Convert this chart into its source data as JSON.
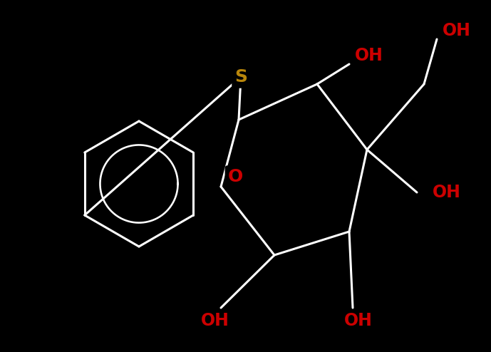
{
  "background_color": "#000000",
  "bond_color": "#ffffff",
  "S_color": "#b8860b",
  "O_color": "#cc0000",
  "OH_color": "#cc0000",
  "label_S": "S",
  "label_O": "O",
  "label_OH": "OH",
  "fig_width": 6.89,
  "fig_height": 4.94,
  "dpi": 100,
  "font_size_atom": 18,
  "font_size_OH": 17,
  "line_width": 2.2
}
